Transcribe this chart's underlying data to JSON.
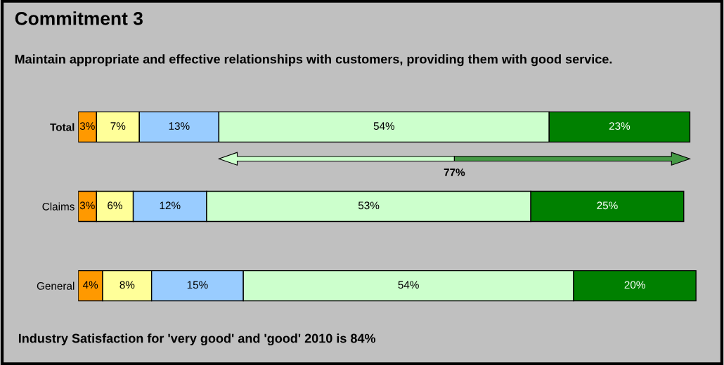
{
  "chart_data": {
    "type": "bar",
    "orientation": "horizontal",
    "stacked": true,
    "title": "Commitment 3",
    "subtitle": "Maintain appropriate and effective relationships with customers, providing them with good service.",
    "categories": [
      "Total",
      "Claims",
      "General"
    ],
    "series": [
      {
        "color": "#ff9900",
        "values": [
          3,
          3,
          4
        ],
        "value_labels": [
          "3%",
          "3%",
          "4%"
        ]
      },
      {
        "color": "#ffff99",
        "values": [
          7,
          6,
          8
        ],
        "value_labels": [
          "7%",
          "6%",
          "8%"
        ]
      },
      {
        "color": "#99ccff",
        "values": [
          13,
          12,
          15
        ],
        "value_labels": [
          "13%",
          "12%",
          "15%"
        ]
      },
      {
        "color": "#ccffcc",
        "values": [
          54,
          53,
          54
        ],
        "value_labels": [
          "54%",
          "53%",
          "54%"
        ]
      },
      {
        "color": "#008000",
        "values": [
          23,
          25,
          20
        ],
        "value_labels": [
          "23%",
          "25%",
          "20%"
        ]
      }
    ],
    "annotations": [
      "77%",
      "Industry Satisfaction for 'very good' and 'good' 2010 is 84%"
    ],
    "grid": false,
    "legend": false
  }
}
